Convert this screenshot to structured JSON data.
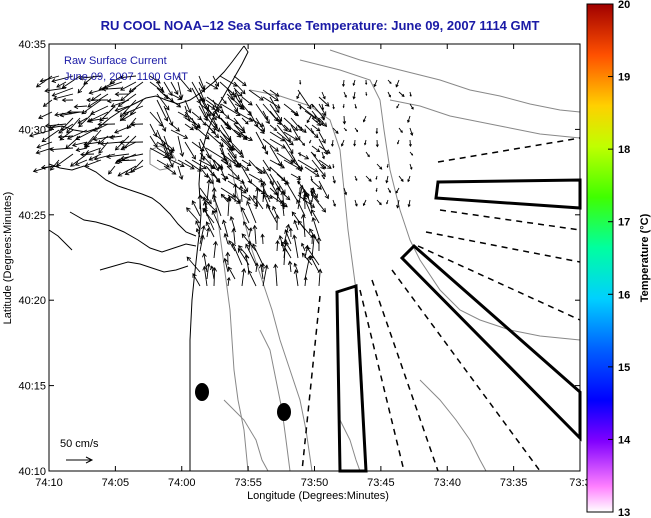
{
  "title": "RU COOL   NOAA–12  Sea Surface Temperature:  June 09, 2007 1114 GMT",
  "overlay": {
    "line1": "Raw Surface Current",
    "line2": "June 09, 2007 1100 GMT"
  },
  "scale_label": "50 cm/s",
  "axes": {
    "xlabel": "Longitude (Degrees:Minutes)",
    "ylabel": "Latitude (Degrees:Minutes)",
    "xticks": [
      "74:10",
      "74:05",
      "74:00",
      "73:55",
      "73:50",
      "73:45",
      "73:40",
      "73:35",
      "73:3"
    ],
    "yticks": [
      "40:35",
      "40:30",
      "40:25",
      "40:20",
      "40:15",
      "40:10"
    ]
  },
  "colorbar": {
    "label": "Temperature (°C)",
    "ticks": [
      "20",
      "19",
      "18",
      "17",
      "16",
      "15",
      "14",
      "13"
    ],
    "min": 13,
    "max": 20
  },
  "colors": {
    "title": "#1a1aa6",
    "land": "#ffffff",
    "contour": "#888888",
    "vector": "#000000"
  }
}
